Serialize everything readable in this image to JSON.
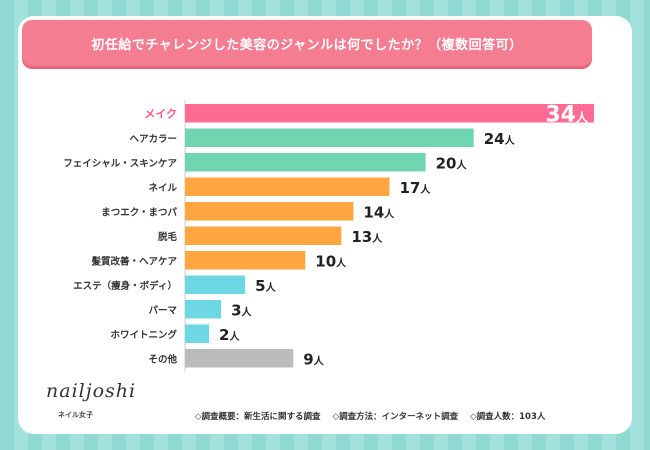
{
  "chart_data": {
    "type": "bar",
    "orientation": "horizontal",
    "title": "初任給でチャレンジした美容のジャンルは何でしたか？（複数回答可）",
    "unit": "人",
    "categories": [
      "メイク",
      "ヘアカラー",
      "フェイシャル・スキンケア",
      "ネイル",
      "まつエク・まつパ",
      "脱毛",
      "髪質改善・ヘアケア",
      "エステ（痩身・ボディ）",
      "パーマ",
      "ホワイトニング",
      "その他"
    ],
    "values": [
      34,
      24,
      20,
      17,
      14,
      13,
      10,
      5,
      3,
      2,
      9
    ],
    "colors": [
      "#ff6b93",
      "#6fd6b0",
      "#6fd6b0",
      "#ffa640",
      "#ffa640",
      "#ffa640",
      "#ffa640",
      "#6dd8e3",
      "#6dd8e3",
      "#6dd8e3",
      "#bbbbbb"
    ],
    "highlight_index": 0,
    "xlim": [
      0,
      34
    ]
  },
  "branding": {
    "logo": "nailjoshi",
    "logo_sub": "ネイル女子"
  },
  "footer": {
    "overview": "◇調査概要：新生活に関する調査",
    "method": "◇調査方法：インターネット調査",
    "respondents": "◇調査人数：103人"
  }
}
